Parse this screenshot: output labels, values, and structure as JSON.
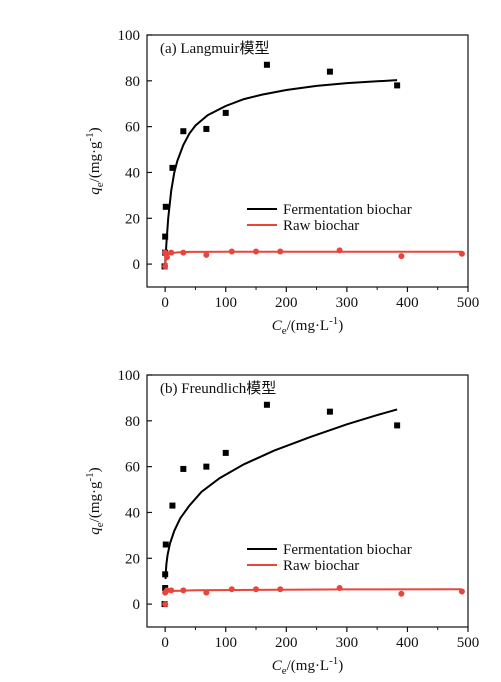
{
  "chart_data": [
    {
      "type": "scatter",
      "title": "(a) Langmuir模型",
      "xlabel": "C_e/(mg·L^-1)",
      "ylabel": "q_e/(mg·g^-1)",
      "xlim": [
        -30,
        500
      ],
      "ylim": [
        -10,
        100
      ],
      "xticks": [
        0,
        100,
        200,
        300,
        400,
        500
      ],
      "xminor": [
        50,
        150,
        250,
        350,
        450
      ],
      "yticks": [
        0,
        20,
        40,
        60,
        80,
        100
      ],
      "grid": false,
      "legend_position": "right",
      "series": [
        {
          "name": "Fermentation biochar",
          "color": "#000000",
          "marker": "square",
          "points": [
            [
              -1,
              -1
            ],
            [
              0,
              5
            ],
            [
              0,
              12
            ],
            [
              1,
              25
            ],
            [
              12,
              42
            ],
            [
              30,
              58
            ],
            [
              68,
              59
            ],
            [
              100,
              66
            ],
            [
              168,
              87
            ],
            [
              272,
              84
            ],
            [
              383,
              78
            ]
          ],
          "fit": [
            [
              0,
              0
            ],
            [
              2,
              9
            ],
            [
              5,
              20
            ],
            [
              10,
              32
            ],
            [
              15,
              40
            ],
            [
              20,
              45
            ],
            [
              30,
              52
            ],
            [
              40,
              57
            ],
            [
              50,
              60.5
            ],
            [
              70,
              65
            ],
            [
              100,
              69
            ],
            [
              130,
              72
            ],
            [
              160,
              74
            ],
            [
              200,
              76
            ],
            [
              250,
              77.8
            ],
            [
              300,
              79
            ],
            [
              350,
              79.8
            ],
            [
              383,
              80.3
            ]
          ]
        },
        {
          "name": "Raw biochar",
          "color": "#e8453c",
          "marker": "circle",
          "points": [
            [
              0,
              -1
            ],
            [
              0,
              5
            ],
            [
              3,
              3
            ],
            [
              10,
              5
            ],
            [
              30,
              5
            ],
            [
              68,
              4
            ],
            [
              110,
              5.5
            ],
            [
              150,
              5.5
            ],
            [
              190,
              5.5
            ],
            [
              288,
              6
            ],
            [
              390,
              3.5
            ],
            [
              490,
              4.5
            ]
          ],
          "fit": [
            [
              0,
              0
            ],
            [
              2,
              3
            ],
            [
              5,
              4.2
            ],
            [
              10,
              4.8
            ],
            [
              20,
              5.1
            ],
            [
              40,
              5.3
            ],
            [
              100,
              5.4
            ],
            [
              200,
              5.4
            ],
            [
              300,
              5.4
            ],
            [
              400,
              5.4
            ],
            [
              490,
              5.4
            ]
          ]
        }
      ]
    },
    {
      "type": "scatter",
      "title": "(b) Freundlich模型",
      "xlabel": "C_e/(mg·L^-1)",
      "ylabel": "q_e/(mg·g^-1)",
      "xlim": [
        -30,
        500
      ],
      "ylim": [
        -10,
        100
      ],
      "xticks": [
        0,
        100,
        200,
        300,
        400,
        500
      ],
      "xminor": [
        50,
        150,
        250,
        350,
        450
      ],
      "yticks": [
        0,
        20,
        40,
        60,
        80,
        100
      ],
      "grid": false,
      "legend_position": "right",
      "series": [
        {
          "name": "Fermentation biochar",
          "color": "#000000",
          "marker": "square",
          "points": [
            [
              -1,
              0
            ],
            [
              0,
              7
            ],
            [
              0,
              13
            ],
            [
              1,
              26
            ],
            [
              12,
              43
            ],
            [
              30,
              59
            ],
            [
              68,
              60
            ],
            [
              100,
              66
            ],
            [
              168,
              87
            ],
            [
              272,
              84
            ],
            [
              383,
              78
            ]
          ],
          "fit": [
            [
              0.5,
              11
            ],
            [
              1,
              14
            ],
            [
              2,
              17.5
            ],
            [
              4,
              21.5
            ],
            [
              8,
              26.5
            ],
            [
              15,
              32
            ],
            [
              25,
              37.5
            ],
            [
              40,
              43
            ],
            [
              60,
              49
            ],
            [
              90,
              55
            ],
            [
              130,
              61
            ],
            [
              180,
              67
            ],
            [
              240,
              73
            ],
            [
              300,
              78.5
            ],
            [
              350,
              82.5
            ],
            [
              383,
              85
            ]
          ]
        },
        {
          "name": "Raw biochar",
          "color": "#e8453c",
          "marker": "circle",
          "points": [
            [
              0,
              0
            ],
            [
              0,
              5
            ],
            [
              3,
              6
            ],
            [
              10,
              6
            ],
            [
              30,
              6
            ],
            [
              68,
              5
            ],
            [
              110,
              6.5
            ],
            [
              150,
              6.5
            ],
            [
              190,
              6.5
            ],
            [
              288,
              7
            ],
            [
              390,
              4.5
            ],
            [
              490,
              5.5
            ]
          ],
          "fit": [
            [
              0.5,
              5
            ],
            [
              2,
              5.4
            ],
            [
              10,
              5.7
            ],
            [
              50,
              6
            ],
            [
              150,
              6.2
            ],
            [
              300,
              6.4
            ],
            [
              490,
              6.5
            ]
          ]
        }
      ]
    }
  ]
}
